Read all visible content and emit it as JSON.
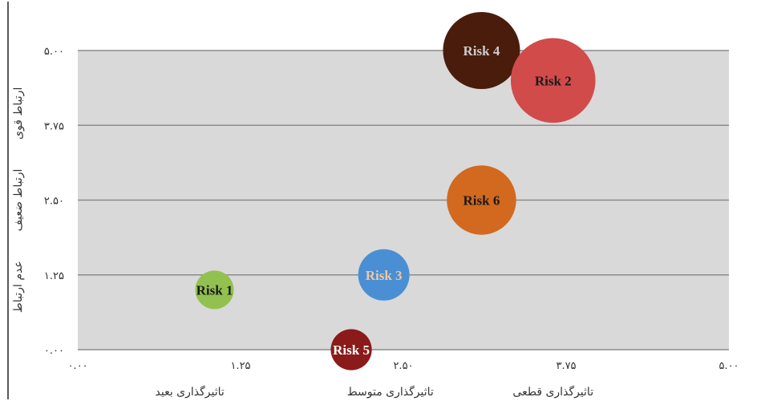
{
  "chart_data": {
    "type": "scatter",
    "subtype": "bubble",
    "title": "",
    "xlabel": "",
    "ylabel": "",
    "xlim": [
      0,
      5
    ],
    "ylim": [
      0,
      5
    ],
    "x_ticks": [
      0,
      1.25,
      2.5,
      3.75,
      5
    ],
    "x_tick_labels": [
      "۰.۰۰",
      "۱.۲۵",
      "۲.۵۰",
      "۳.۷۵",
      "۵.۰۰"
    ],
    "y_ticks": [
      0,
      1.25,
      2.5,
      3.75,
      5
    ],
    "y_tick_labels": [
      "۰.۰۰",
      "۱.۲۵",
      "۲.۵۰",
      "۳.۷۵",
      "۵.۰۰"
    ],
    "x_categories": [
      "تاثیرگذاری بعید",
      "تاثیرگذاری متوسط",
      "تاثیرگذاری قطعی"
    ],
    "y_categories": [
      "عدم ارتباط",
      "ارتباط ضعیف",
      "ارتباط قوی"
    ],
    "grid": true,
    "legend": "none",
    "points": [
      {
        "label": "Risk 1",
        "x": 1.05,
        "y": 1.0,
        "size": 0.75,
        "color": "#93c14f",
        "text_color": "#1a1a1a"
      },
      {
        "label": "Risk 3",
        "x": 2.35,
        "y": 1.25,
        "size": 1.0,
        "color": "#4a8fd4",
        "text_color": "#f2c79a"
      },
      {
        "label": "Risk 5",
        "x": 2.1,
        "y": 0.0,
        "size": 0.8,
        "color": "#8b1a1a",
        "text_color": "#ffffff"
      },
      {
        "label": "Risk 6",
        "x": 3.1,
        "y": 2.5,
        "size": 1.35,
        "color": "#d2691e",
        "text_color": "#1a1a1a"
      },
      {
        "label": "Risk 4",
        "x": 3.1,
        "y": 5.0,
        "size": 1.5,
        "color": "#4a1c0c",
        "text_color": "#cccccc"
      },
      {
        "label": "Risk 2",
        "x": 3.65,
        "y": 4.5,
        "size": 1.65,
        "color": "#d14b4b",
        "text_color": "#1a1a1a"
      }
    ]
  }
}
